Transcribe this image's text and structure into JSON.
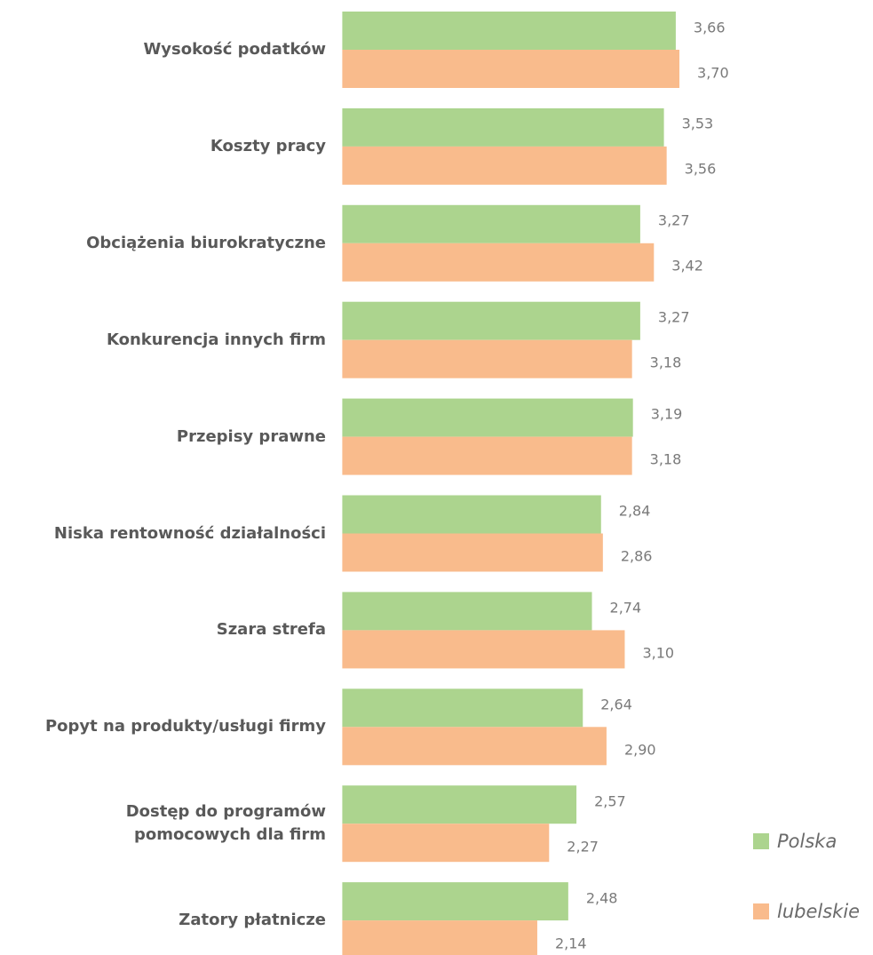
{
  "chart_data": {
    "type": "barh",
    "categories": [
      "Wysokość podatków",
      "Koszty pracy",
      "Obciążenia biurokratyczne",
      "Konkurencja innych firm",
      "Przepisy prawne",
      "Niska rentowność działalności",
      "Szara strefa",
      "Popyt na produkty/usługi firmy",
      "Dostęp do programów\npomocowych dla firm",
      "Zatory płatnicze"
    ],
    "series": [
      {
        "name": "Polska",
        "color": "#acd48e",
        "values": [
          3.66,
          3.53,
          3.27,
          3.27,
          3.19,
          2.84,
          2.74,
          2.64,
          2.57,
          2.48
        ],
        "value_labels": [
          "3,66",
          "3,53",
          "3,27",
          "3,27",
          "3,19",
          "2,84",
          "2,74",
          "2,64",
          "2,57",
          "2,48"
        ]
      },
      {
        "name": "lubelskie",
        "color": "#f9bb8c",
        "values": [
          3.7,
          3.56,
          3.42,
          3.18,
          3.18,
          2.86,
          3.1,
          2.9,
          2.27,
          2.14
        ],
        "value_labels": [
          "3,70",
          "3,56",
          "3,42",
          "3,18",
          "3,18",
          "2,86",
          "3,10",
          "2,90",
          "2,27",
          "2,14"
        ]
      }
    ]
  }
}
